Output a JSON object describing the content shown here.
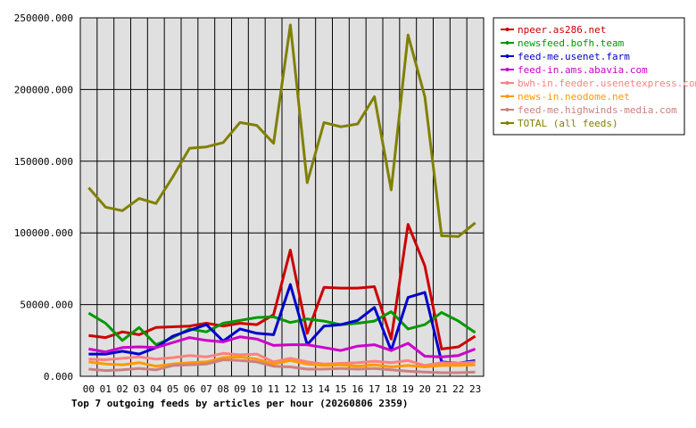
{
  "chart_data": {
    "type": "line",
    "title": "Top 7 outgoing feeds by articles per hour (20260806 2359)",
    "xlabel": "",
    "ylabel": "",
    "ylim": [
      0,
      250000
    ],
    "y_ticks": [
      "0.000",
      "50000.000",
      "100000.000",
      "150000.000",
      "200000.000",
      "250000.000"
    ],
    "grid": true,
    "legend_position": "top-right",
    "categories": [
      "00",
      "01",
      "02",
      "03",
      "04",
      "05",
      "06",
      "07",
      "08",
      "09",
      "10",
      "11",
      "12",
      "13",
      "14",
      "15",
      "16",
      "17",
      "18",
      "19",
      "20",
      "21",
      "22",
      "23"
    ],
    "series": [
      {
        "name": "npeer.as286.net",
        "color": "#cc0000",
        "values": [
          28500,
          27000,
          31000,
          29000,
          34000,
          34500,
          35000,
          37000,
          35000,
          37000,
          36000,
          43000,
          88000,
          30000,
          62000,
          61500,
          61500,
          62500,
          26000,
          106000,
          77000,
          19000,
          20500,
          28000
        ]
      },
      {
        "name": "newsfeed.bofh.team",
        "color": "#009900",
        "values": [
          44000,
          37000,
          25000,
          34000,
          22000,
          27000,
          33000,
          31000,
          37000,
          39000,
          41000,
          41500,
          37500,
          40000,
          38500,
          36000,
          37000,
          38500,
          45000,
          33000,
          36000,
          44500,
          38500,
          30500
        ]
      },
      {
        "name": "feed-me.usenet.farm",
        "color": "#0000cc",
        "values": [
          15500,
          15500,
          17500,
          15500,
          20000,
          28000,
          32000,
          36000,
          24500,
          33000,
          30000,
          29000,
          64000,
          22000,
          35000,
          36000,
          39000,
          48000,
          18000,
          55000,
          58500,
          10000,
          9000,
          11000
        ]
      },
      {
        "name": "feed-in.ams.abavia.com",
        "color": "#cc00cc",
        "values": [
          19000,
          17000,
          20000,
          20500,
          20000,
          23500,
          27000,
          25000,
          24000,
          27500,
          26000,
          21500,
          22000,
          22000,
          20000,
          18000,
          21000,
          22000,
          18000,
          23000,
          14000,
          13500,
          14500,
          19000
        ]
      },
      {
        "name": "bwh-in.feeder.usenetexpress.com",
        "color": "#ff8080",
        "values": [
          12000,
          11500,
          12500,
          13500,
          12000,
          13000,
          14500,
          13500,
          16000,
          15000,
          15500,
          10000,
          12500,
          10000,
          8500,
          9000,
          9500,
          10500,
          9500,
          11000,
          7500,
          9500,
          9000,
          10000
        ]
      },
      {
        "name": "news-in.neodome.net",
        "color": "#ff9900",
        "values": [
          10000,
          8500,
          8000,
          9500,
          7000,
          8500,
          9500,
          10000,
          13000,
          13500,
          12000,
          8500,
          11000,
          8500,
          7500,
          8000,
          7000,
          8000,
          6500,
          7500,
          6500,
          7500,
          7500,
          8000
        ]
      },
      {
        "name": "feed-me.highwinds-media.com",
        "color": "#cc8080",
        "values": [
          5000,
          4000,
          4500,
          5500,
          4500,
          7500,
          8000,
          8500,
          11500,
          11000,
          10000,
          7000,
          6500,
          5000,
          5000,
          5500,
          5000,
          5500,
          4500,
          3500,
          3000,
          2500,
          2500,
          3000
        ]
      },
      {
        "name": "TOTAL (all feeds)",
        "color": "#808000",
        "values": [
          131500,
          118000,
          115500,
          124000,
          120500,
          139000,
          159000,
          160000,
          163000,
          177000,
          175000,
          162500,
          245000,
          135000,
          177000,
          174000,
          176000,
          195000,
          130000,
          238000,
          195000,
          98000,
          97500,
          107000
        ]
      }
    ]
  }
}
